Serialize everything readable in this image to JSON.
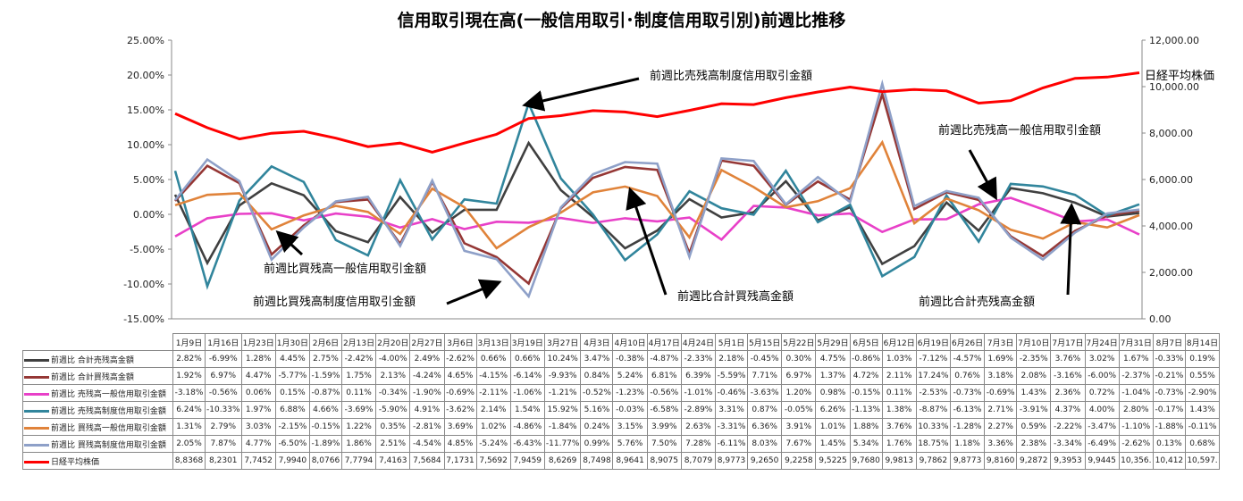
{
  "chart_data": {
    "type": "line",
    "title": "信用取引現在高(一般信用取引･制度信用取引別)前週比推移",
    "categories": [
      "1月9日",
      "1月16日",
      "1月23日",
      "1月30日",
      "2月6日",
      "2月13日",
      "2月20日",
      "2月27日",
      "3月6日",
      "3月13日",
      "3月19日",
      "3月27日",
      "4月3日",
      "4月10日",
      "4月17日",
      "4月24日",
      "5月1日",
      "5月15日",
      "5月22日",
      "5月29日",
      "6月5日",
      "6月12日",
      "6月19日",
      "6月26日",
      "7月3日",
      "7月10日",
      "7月17日",
      "7月24日",
      "7月31日",
      "8月7日",
      "8月14日"
    ],
    "y_left": {
      "range": [
        -15,
        25
      ],
      "ticks": [
        "-15.00%",
        "-10.00%",
        "-5.00%",
        "0.00%",
        "5.00%",
        "10.00%",
        "15.00%",
        "20.00%",
        "25.00%"
      ]
    },
    "y_right": {
      "range": [
        0,
        12000
      ],
      "ticks": [
        "0.00",
        "2,000.00",
        "4,000.00",
        "6,000.00",
        "8,000.00",
        "10,000.00",
        "12,000.00"
      ]
    },
    "series": [
      {
        "name": "前週比 合計売残高金額",
        "color": "#404040",
        "axis": "left",
        "values": [
          2.82,
          -6.99,
          1.28,
          4.45,
          2.75,
          -2.42,
          -4.0,
          2.49,
          -2.62,
          0.66,
          0.66,
          10.24,
          3.47,
          -0.38,
          -4.87,
          -2.33,
          2.18,
          -0.45,
          0.3,
          4.75,
          -0.86,
          1.03,
          -7.12,
          -4.57,
          1.69,
          -2.35,
          3.76,
          3.02,
          1.67,
          -0.33,
          0.19
        ]
      },
      {
        "name": "前週比 合計買残高金額",
        "color": "#953735",
        "axis": "left",
        "values": [
          1.92,
          6.97,
          4.47,
          -5.77,
          -1.59,
          1.75,
          2.13,
          -4.24,
          4.65,
          -4.15,
          -6.14,
          -9.93,
          0.84,
          5.24,
          6.81,
          6.39,
          -5.59,
          7.71,
          6.97,
          1.37,
          4.72,
          2.11,
          17.24,
          0.76,
          3.18,
          2.08,
          -3.16,
          -6.0,
          -2.37,
          -0.21,
          0.55
        ]
      },
      {
        "name": "前週比 売残高一般信用取引金額",
        "color": "#e840c8",
        "axis": "left",
        "values": [
          -3.18,
          -0.56,
          0.06,
          0.15,
          -0.87,
          0.11,
          -0.34,
          -1.9,
          -0.69,
          -2.11,
          -1.06,
          -1.21,
          -0.52,
          -1.23,
          -0.56,
          -1.01,
          -0.46,
          -3.63,
          1.2,
          0.98,
          -0.15,
          0.11,
          -2.53,
          -0.73,
          -0.69,
          1.43,
          2.36,
          0.72,
          -1.04,
          -0.73,
          -2.9
        ]
      },
      {
        "name": "前週比 売残高制度信用取引金額",
        "color": "#31859c",
        "axis": "left",
        "values": [
          6.24,
          -10.33,
          1.97,
          6.88,
          4.66,
          -3.69,
          -5.9,
          4.91,
          -3.62,
          2.14,
          1.54,
          15.92,
          5.16,
          -0.03,
          -6.58,
          -2.89,
          3.31,
          0.87,
          -0.05,
          6.26,
          -1.13,
          1.38,
          -8.87,
          -6.13,
          2.71,
          -3.91,
          4.37,
          4.0,
          2.8,
          -0.17,
          1.43
        ]
      },
      {
        "name": "前週比 買残高一般信用取引金額",
        "color": "#e0833a",
        "axis": "left",
        "values": [
          1.31,
          2.79,
          3.03,
          -2.15,
          -0.15,
          1.22,
          0.35,
          -2.81,
          3.69,
          1.02,
          -4.86,
          -1.84,
          0.24,
          3.15,
          3.99,
          2.63,
          -3.31,
          6.36,
          3.91,
          1.01,
          1.88,
          3.76,
          10.33,
          -1.28,
          2.27,
          0.59,
          -2.22,
          -3.47,
          -1.1,
          -1.88,
          -0.11
        ]
      },
      {
        "name": "前週比 買残高制度信用取引金額",
        "color": "#8ea0c8",
        "axis": "left",
        "values": [
          2.05,
          7.87,
          4.77,
          -6.5,
          -1.89,
          1.86,
          2.51,
          -4.54,
          4.85,
          -5.24,
          -6.43,
          -11.77,
          0.99,
          5.76,
          7.5,
          7.28,
          -6.11,
          8.03,
          7.67,
          1.45,
          5.34,
          1.76,
          18.75,
          1.18,
          3.36,
          2.38,
          -3.34,
          -6.49,
          -2.62,
          0.13,
          0.68
        ]
      },
      {
        "name": "日経平均株価",
        "color": "#ff0000",
        "axis": "right",
        "values": [
          8836.8,
          8230.1,
          7745.2,
          7994.0,
          8076.6,
          7779.4,
          7416.3,
          7568.4,
          7173.1,
          7569.2,
          7945.9,
          8626.9,
          8749.8,
          8964.1,
          8907.5,
          8707.9,
          8977.3,
          9265.0,
          9225.8,
          9522.5,
          9768.0,
          9981.3,
          9786.2,
          9877.3,
          9816.0,
          9287.2,
          9395.3,
          9944.5,
          10356,
          10412,
          10597
        ],
        "table_labels": [
          "8,8368",
          "8,2301",
          "7,7452",
          "7,9940",
          "8,0766",
          "7,7794",
          "7,4163",
          "7,5684",
          "7,1731",
          "7,5692",
          "7,9459",
          "8,6269",
          "8,7498",
          "8,9641",
          "8,9075",
          "8,7079",
          "8,9773",
          "9,2650",
          "9,2258",
          "9,5225",
          "9,7680",
          "9,9813",
          "9,7862",
          "9,8773",
          "9,8160",
          "9,2872",
          "9,3953",
          "9,9445",
          "10,356.",
          "10,412",
          "10,597."
        ]
      }
    ],
    "annotations": [
      "前週比売残高制度信用取引金額",
      "前週比売残高一般信用取引金額",
      "前週比買残高一般信用取引金額",
      "前週比買残高制度信用取引金額",
      "前週比合計買残高金額",
      "前週比合計売残高金額"
    ],
    "series_end_label": "日経平均株価"
  }
}
